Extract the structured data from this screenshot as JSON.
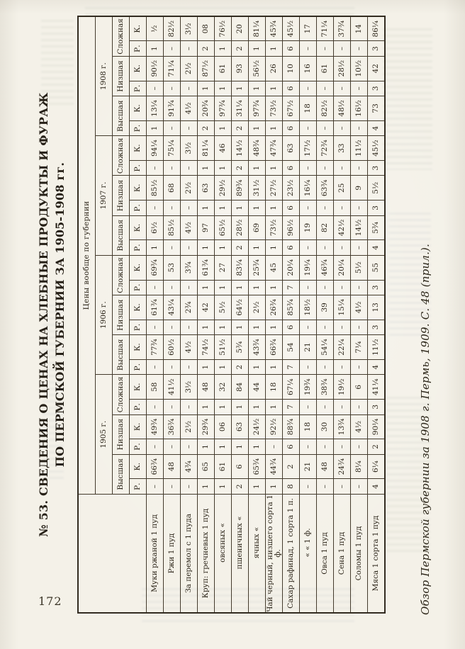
{
  "page": {
    "number": "172"
  },
  "title": {
    "line1": "№ 53. СВЕДЕНИЯ О ЦЕНАХ НА ХЛЕБНЫЕ ПРОДУКТЫ И ФУРАЖ",
    "line2": "ПО ПЕРМСКОЙ ГУБЕРНИИ ЗА 1905-1908 гг."
  },
  "table": {
    "spanner": "Цены вообще по губернии",
    "years": [
      "1905 г.",
      "1906 г.",
      "1907 г.",
      "1908 г."
    ],
    "price_types": [
      "Высшая",
      "Низшая",
      "Сложная"
    ],
    "unit_labels": {
      "rub": "Р.",
      "kop": "К."
    },
    "rows": [
      {
        "name": "Муки ржаной 1 пуд",
        "indent": false,
        "values": [
          "–",
          "66¾",
          "–",
          "49¾",
          "–",
          "58",
          "–",
          "77¾",
          "–",
          "61¾",
          "–",
          "69¾",
          "1",
          "6½",
          "–",
          "85½",
          "–",
          "94¼",
          "1",
          "13¼",
          "–",
          "90½",
          "1",
          "½"
        ]
      },
      {
        "name": "Ржи 1 пуд",
        "indent": false,
        "values": [
          "–",
          "48",
          "–",
          "36¾",
          "–",
          "41½",
          "–",
          "60½",
          "–",
          "43¼",
          "–",
          "53",
          "–",
          "85½",
          "–",
          "68",
          "–",
          "75¼",
          "–",
          "91¾",
          "–",
          "71¼",
          "–",
          "82½"
        ]
      },
      {
        "name": "За перемол с 1 пуда",
        "indent": false,
        "values": [
          "–",
          "4¾",
          "–",
          "2½",
          "–",
          "3½",
          "–",
          "4½",
          "–",
          "2¾",
          "–",
          "3¾",
          "–",
          "4½",
          "–",
          "2½",
          "–",
          "3½",
          "–",
          "4½",
          "–",
          "2½",
          "–",
          "3½"
        ]
      },
      {
        "name": "Круп: гречневых 1 пуд",
        "indent": false,
        "values": [
          "1",
          "65",
          "1",
          "29¾",
          "1",
          "48",
          "1",
          "74½",
          "1",
          "42",
          "1",
          "61¾",
          "1",
          "97",
          "1",
          "63",
          "1",
          "81¼",
          "2",
          "20¾",
          "1",
          "87½",
          "2",
          "08"
        ]
      },
      {
        "name": "овсяных «",
        "indent": true,
        "values": [
          "1",
          "61",
          "1",
          "06",
          "1",
          "32",
          "1",
          "51½",
          "1",
          "5½",
          "1",
          "27",
          "1",
          "65½",
          "1",
          "29½",
          "1",
          "46",
          "1",
          "97¾",
          "1",
          "61",
          "1",
          "76½"
        ]
      },
      {
        "name": "пшеничных «",
        "indent": true,
        "values": [
          "2",
          "6",
          "1",
          "63",
          "1",
          "84",
          "2",
          "5¾",
          "1",
          "64½",
          "1",
          "83¼",
          "2",
          "28½",
          "1",
          "89¾",
          "2",
          "14½",
          "2",
          "31¼",
          "1",
          "93",
          "2",
          "20"
        ]
      },
      {
        "name": "ячных «",
        "indent": true,
        "values": [
          "1",
          "65¾",
          "1",
          "24½",
          "1",
          "44",
          "1",
          "43¾",
          "1",
          "2½",
          "1",
          "25¾",
          "1",
          "69",
          "1",
          "31½",
          "1",
          "48¾",
          "1",
          "97¾",
          "1",
          "56½",
          "1",
          "81¼"
        ]
      },
      {
        "name": "Чай черный, низшего сорта 1 ф.",
        "indent": false,
        "values": [
          "1",
          "44¾",
          "–",
          "92½",
          "1",
          "18",
          "1",
          "66¾",
          "1",
          "26¾",
          "1",
          "45",
          "1",
          "73½",
          "1",
          "27½",
          "1",
          "47¾",
          "1",
          "73½",
          "1",
          "26",
          "1",
          "45¾"
        ]
      },
      {
        "name": "Сахар рафинад, 1 сорта 1 п.",
        "indent": false,
        "values": [
          "8",
          "2",
          "6",
          "88¾",
          "7",
          "67¼",
          "7",
          "54",
          "6",
          "85¾",
          "7",
          "20¼",
          "6",
          "96½",
          "6",
          "23½",
          "6",
          "63",
          "6",
          "67½",
          "6",
          "10",
          "6",
          "45½"
        ]
      },
      {
        "name": "«       «       1 ф.",
        "indent": true,
        "values": [
          "–",
          "21",
          "–",
          "18",
          "–",
          "19¾",
          "–",
          "21",
          "–",
          "18½",
          "–",
          "19¼",
          "–",
          "19",
          "–",
          "16¼",
          "–",
          "17½",
          "–",
          "18",
          "–",
          "16",
          "–",
          "17"
        ]
      },
      {
        "name": "Овса 1 пуд",
        "indent": false,
        "values": [
          "–",
          "48",
          "–",
          "30",
          "–",
          "38¾",
          "–",
          "54¼",
          "–",
          "39",
          "–",
          "46¾",
          "–",
          "82",
          "–",
          "63¾",
          "–",
          "72¾",
          "–",
          "82½",
          "–",
          "61",
          "–",
          "71¼"
        ]
      },
      {
        "name": "Сена 1 пуд",
        "indent": false,
        "values": [
          "–",
          "24¾",
          "–",
          "13¾",
          "–",
          "19½",
          "–",
          "22¼",
          "–",
          "15¼",
          "–",
          "20¼",
          "–",
          "42½",
          "–",
          "25",
          "–",
          "33",
          "–",
          "48½",
          "–",
          "28½",
          "–",
          "37¾"
        ]
      },
      {
        "name": "Соломы 1 пуд",
        "indent": false,
        "values": [
          "–",
          "8¼",
          "–",
          "4½",
          "–",
          "6",
          "–",
          "7¼",
          "–",
          "4½",
          "–",
          "5½",
          "–",
          "14½",
          "–",
          "9",
          "–",
          "11½",
          "–",
          "16½",
          "–",
          "10½",
          "–",
          "14"
        ]
      },
      {
        "name": "Мяса 1 сорта 1 пуд",
        "indent": false,
        "values": [
          "4",
          "6¼",
          "2",
          "90¼",
          "3",
          "41¼",
          "4",
          "11½",
          "3",
          "13",
          "3",
          "55",
          "4",
          "5¾",
          "3",
          "5½",
          "3",
          "45½",
          "4",
          "73",
          "3",
          "42",
          "3",
          "86¼"
        ]
      }
    ]
  },
  "citation": "Обзор Пермской губернии за 1908 г. Пермь, 1909. С. 48 (прил.)."
}
